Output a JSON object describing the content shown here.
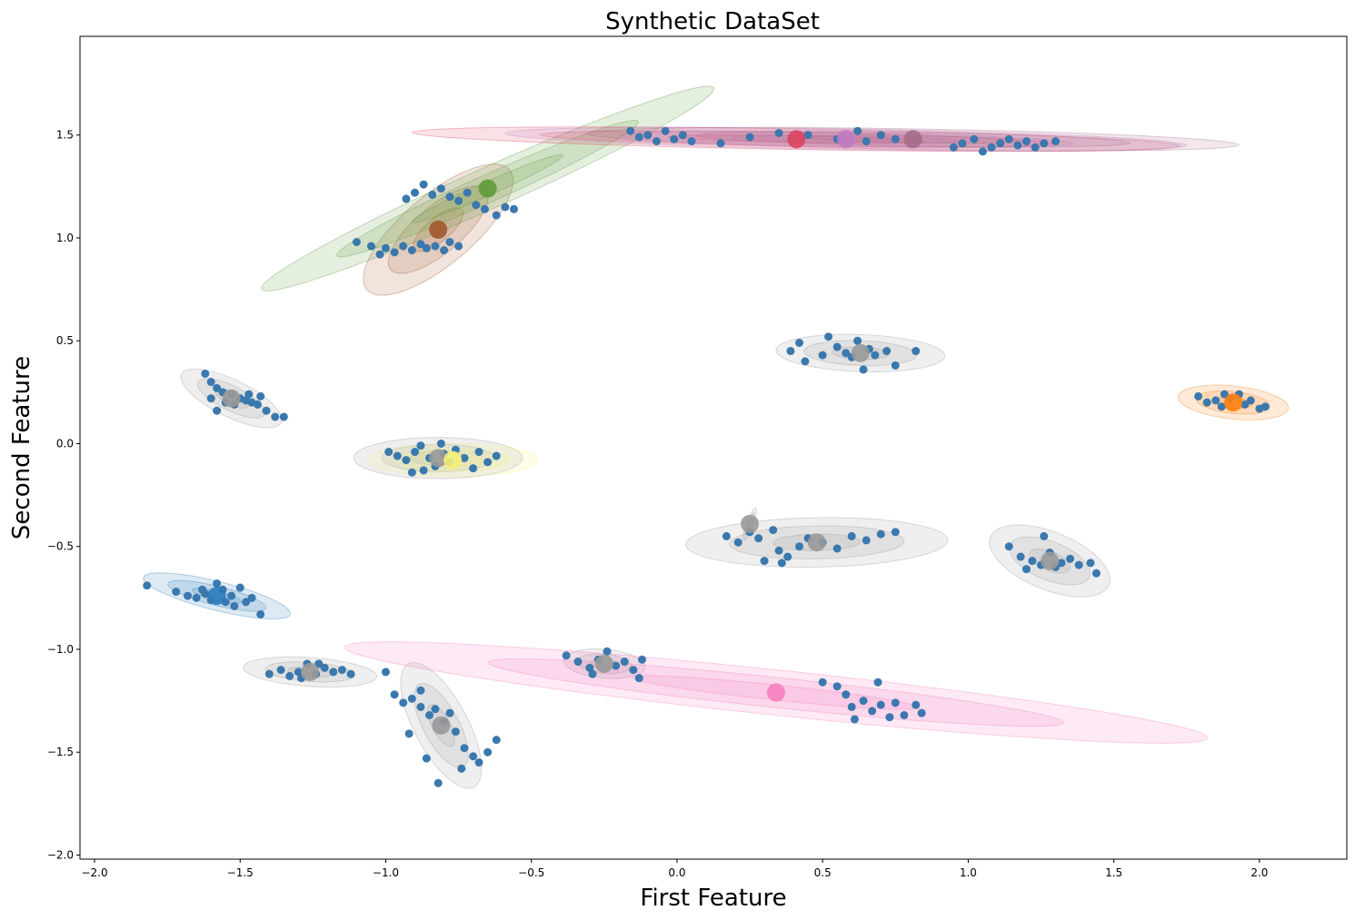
{
  "chart_data": {
    "type": "scatter",
    "title": "Synthetic DataSet",
    "xlabel": "First Feature",
    "ylabel": "Second Feature",
    "xlim": [
      -2.05,
      2.3
    ],
    "ylim": [
      -2.02,
      1.98
    ],
    "xticks": [
      -2.0,
      -1.5,
      -1.0,
      -0.5,
      0.0,
      0.5,
      1.0,
      1.5,
      2.0
    ],
    "xtick_labels": [
      "−2.0",
      "−1.5",
      "−1.0",
      "−0.5",
      "0.0",
      "0.5",
      "1.0",
      "1.5",
      "2.0"
    ],
    "yticks": [
      -2.0,
      -1.5,
      -1.0,
      -0.5,
      0.0,
      0.5,
      1.0,
      1.5
    ],
    "ytick_labels": [
      "−2.0",
      "−1.5",
      "−1.0",
      "−0.5",
      "0.0",
      "0.5",
      "1.0",
      "1.5"
    ],
    "grid": false,
    "point_color": "#3a78ad",
    "ellipse_shading": [
      0.5,
      1.0,
      1.5
    ],
    "clusters": [
      {
        "center": [
          -1.53,
          0.22
        ],
        "color": "#999999",
        "rx": 0.19,
        "ry": 0.09,
        "angle": -26,
        "points": [
          [
            -1.62,
            0.34
          ],
          [
            -1.6,
            0.3
          ],
          [
            -1.58,
            0.27
          ],
          [
            -1.56,
            0.25
          ],
          [
            -1.53,
            0.24
          ],
          [
            -1.5,
            0.22
          ],
          [
            -1.48,
            0.21
          ],
          [
            -1.46,
            0.2
          ],
          [
            -1.44,
            0.19
          ],
          [
            -1.41,
            0.16
          ],
          [
            -1.38,
            0.13
          ],
          [
            -1.35,
            0.13
          ],
          [
            -1.58,
            0.16
          ],
          [
            -1.6,
            0.22
          ],
          [
            -1.55,
            0.2
          ],
          [
            -1.47,
            0.24
          ],
          [
            -1.43,
            0.23
          ],
          [
            -1.52,
            0.19
          ]
        ]
      },
      {
        "center": [
          -0.82,
          -0.07
        ],
        "color": "#999999",
        "rx": 0.29,
        "ry": 0.1,
        "angle": 0,
        "points": [
          [
            -0.99,
            -0.04
          ],
          [
            -0.96,
            -0.06
          ],
          [
            -0.93,
            -0.08
          ],
          [
            -0.9,
            -0.04
          ],
          [
            -0.88,
            -0.01
          ],
          [
            -0.85,
            -0.07
          ],
          [
            -0.83,
            -0.11
          ],
          [
            -0.8,
            -0.05
          ],
          [
            -0.78,
            -0.09
          ],
          [
            -0.76,
            -0.03
          ],
          [
            -0.73,
            -0.07
          ],
          [
            -0.7,
            -0.12
          ],
          [
            -0.68,
            -0.04
          ],
          [
            -0.65,
            -0.09
          ],
          [
            -0.62,
            -0.06
          ],
          [
            -0.91,
            -0.14
          ],
          [
            -0.87,
            -0.13
          ],
          [
            -0.81,
            0.0
          ]
        ]
      },
      {
        "center": [
          -0.77,
          -0.08
        ],
        "color": "#f5f07a",
        "rx": 0.29,
        "ry": 0.08,
        "angle": 0,
        "points": []
      },
      {
        "center": [
          -1.58,
          -0.74
        ],
        "color": "#2b7bba",
        "rx": 0.26,
        "ry": 0.07,
        "angle": -14,
        "points": [
          [
            -1.82,
            -0.69
          ],
          [
            -1.72,
            -0.72
          ],
          [
            -1.68,
            -0.74
          ],
          [
            -1.65,
            -0.75
          ],
          [
            -1.62,
            -0.73
          ],
          [
            -1.6,
            -0.76
          ],
          [
            -1.58,
            -0.68
          ],
          [
            -1.56,
            -0.71
          ],
          [
            -1.53,
            -0.74
          ],
          [
            -1.5,
            -0.7
          ],
          [
            -1.48,
            -0.77
          ],
          [
            -1.46,
            -0.75
          ],
          [
            -1.43,
            -0.83
          ],
          [
            -1.63,
            -0.71
          ],
          [
            -1.55,
            -0.77
          ],
          [
            -1.52,
            -0.79
          ]
        ]
      },
      {
        "center": [
          -1.26,
          -1.11
        ],
        "color": "#999999",
        "rx": 0.23,
        "ry": 0.07,
        "angle": -4,
        "points": [
          [
            -1.4,
            -1.12
          ],
          [
            -1.36,
            -1.1
          ],
          [
            -1.33,
            -1.13
          ],
          [
            -1.3,
            -1.11
          ],
          [
            -1.27,
            -1.07
          ],
          [
            -1.24,
            -1.12
          ],
          [
            -1.21,
            -1.09
          ],
          [
            -1.18,
            -1.11
          ],
          [
            -1.15,
            -1.1
          ],
          [
            -1.12,
            -1.12
          ],
          [
            -1.29,
            -1.14
          ],
          [
            -1.23,
            -1.07
          ]
        ]
      },
      {
        "center": [
          -0.81,
          -1.37
        ],
        "color": "#999999",
        "rx": 0.24,
        "ry": 0.13,
        "angle": -62,
        "points": [
          [
            -1.0,
            -1.11
          ],
          [
            -0.97,
            -1.22
          ],
          [
            -0.94,
            -1.26
          ],
          [
            -0.91,
            -1.24
          ],
          [
            -0.88,
            -1.28
          ],
          [
            -0.85,
            -1.32
          ],
          [
            -0.83,
            -1.29
          ],
          [
            -0.8,
            -1.35
          ],
          [
            -0.78,
            -1.31
          ],
          [
            -0.76,
            -1.4
          ],
          [
            -0.73,
            -1.48
          ],
          [
            -0.7,
            -1.52
          ],
          [
            -0.68,
            -1.55
          ],
          [
            -0.65,
            -1.5
          ],
          [
            -0.62,
            -1.44
          ],
          [
            -0.86,
            -1.53
          ],
          [
            -0.82,
            -1.65
          ],
          [
            -0.74,
            -1.58
          ],
          [
            -0.92,
            -1.41
          ],
          [
            -0.88,
            -1.2
          ]
        ]
      },
      {
        "center": [
          -0.82,
          1.04
        ],
        "color": "#a0582a",
        "rx": 0.32,
        "ry": 0.17,
        "angle": 40,
        "points": [
          [
            -1.1,
            0.98
          ],
          [
            -1.05,
            0.96
          ],
          [
            -1.02,
            0.92
          ],
          [
            -1.0,
            0.95
          ],
          [
            -0.97,
            0.93
          ],
          [
            -0.94,
            0.96
          ],
          [
            -0.91,
            0.94
          ],
          [
            -0.88,
            0.97
          ],
          [
            -0.86,
            0.95
          ],
          [
            -0.83,
            0.96
          ],
          [
            -0.8,
            0.94
          ],
          [
            -0.78,
            0.98
          ],
          [
            -0.75,
            0.96
          ]
        ]
      },
      {
        "center": [
          -0.65,
          1.24
        ],
        "color": "#5f9a3b",
        "rx": 0.85,
        "ry": 0.1,
        "angle": 24,
        "points": [
          [
            -0.93,
            1.19
          ],
          [
            -0.9,
            1.22
          ],
          [
            -0.87,
            1.26
          ],
          [
            -0.84,
            1.21
          ],
          [
            -0.81,
            1.24
          ],
          [
            -0.78,
            1.2
          ],
          [
            -0.75,
            1.18
          ],
          [
            -0.72,
            1.22
          ],
          [
            -0.69,
            1.16
          ],
          [
            -0.66,
            1.14
          ],
          [
            -0.62,
            1.11
          ],
          [
            -0.59,
            1.15
          ],
          [
            -0.56,
            1.14
          ]
        ]
      },
      {
        "center": [
          0.41,
          1.48
        ],
        "color": "#d94560",
        "rx": 1.32,
        "ry": 0.05,
        "angle": -1,
        "points": [
          [
            -0.16,
            1.52
          ],
          [
            -0.13,
            1.49
          ],
          [
            -0.1,
            1.5
          ],
          [
            -0.07,
            1.47
          ],
          [
            -0.04,
            1.52
          ],
          [
            -0.01,
            1.48
          ],
          [
            0.02,
            1.5
          ],
          [
            0.05,
            1.47
          ],
          [
            0.15,
            1.46
          ],
          [
            0.25,
            1.49
          ],
          [
            0.35,
            1.51
          ],
          [
            0.45,
            1.5
          ],
          [
            0.55,
            1.48
          ],
          [
            0.62,
            1.52
          ],
          [
            0.65,
            1.47
          ],
          [
            0.7,
            1.5
          ],
          [
            0.75,
            1.48
          ]
        ]
      },
      {
        "center": [
          0.58,
          1.48
        ],
        "color": "#c07ac0",
        "rx": 1.17,
        "ry": 0.05,
        "angle": -1,
        "points": []
      },
      {
        "center": [
          0.81,
          1.48
        ],
        "color": "#a56b8a",
        "rx": 1.12,
        "ry": 0.05,
        "angle": -1,
        "points": [
          [
            0.95,
            1.44
          ],
          [
            0.98,
            1.46
          ],
          [
            1.02,
            1.48
          ],
          [
            1.05,
            1.42
          ],
          [
            1.08,
            1.44
          ],
          [
            1.11,
            1.46
          ],
          [
            1.14,
            1.48
          ],
          [
            1.17,
            1.45
          ],
          [
            1.2,
            1.47
          ],
          [
            1.23,
            1.44
          ],
          [
            1.26,
            1.46
          ],
          [
            1.3,
            1.47
          ]
        ]
      },
      {
        "center": [
          0.63,
          0.44
        ],
        "color": "#999999",
        "rx": 0.29,
        "ry": 0.09,
        "angle": -2,
        "points": [
          [
            0.39,
            0.45
          ],
          [
            0.42,
            0.49
          ],
          [
            0.44,
            0.4
          ],
          [
            0.5,
            0.43
          ],
          [
            0.52,
            0.52
          ],
          [
            0.55,
            0.47
          ],
          [
            0.58,
            0.44
          ],
          [
            0.6,
            0.42
          ],
          [
            0.62,
            0.5
          ],
          [
            0.64,
            0.36
          ],
          [
            0.66,
            0.46
          ],
          [
            0.68,
            0.43
          ],
          [
            0.72,
            0.45
          ],
          [
            0.75,
            0.38
          ],
          [
            0.82,
            0.45
          ]
        ]
      },
      {
        "center": [
          1.91,
          0.2
        ],
        "color": "#ff7f0e",
        "rx": 0.19,
        "ry": 0.08,
        "angle": -6,
        "points": [
          [
            1.79,
            0.23
          ],
          [
            1.82,
            0.2
          ],
          [
            1.85,
            0.21
          ],
          [
            1.87,
            0.18
          ],
          [
            1.9,
            0.22
          ],
          [
            1.93,
            0.24
          ],
          [
            1.95,
            0.19
          ],
          [
            1.97,
            0.21
          ],
          [
            2.0,
            0.17
          ],
          [
            2.02,
            0.18
          ],
          [
            1.88,
            0.24
          ]
        ]
      },
      {
        "center": [
          0.48,
          -0.48
        ],
        "color": "#999999",
        "rx": 0.45,
        "ry": 0.12,
        "angle": 1,
        "points": [
          [
            0.17,
            -0.45
          ],
          [
            0.21,
            -0.48
          ],
          [
            0.25,
            -0.43
          ],
          [
            0.28,
            -0.46
          ],
          [
            0.3,
            -0.57
          ],
          [
            0.33,
            -0.42
          ],
          [
            0.35,
            -0.52
          ],
          [
            0.38,
            -0.55
          ],
          [
            0.42,
            -0.5
          ],
          [
            0.45,
            -0.46
          ],
          [
            0.5,
            -0.48
          ],
          [
            0.55,
            -0.51
          ],
          [
            0.6,
            -0.45
          ],
          [
            0.65,
            -0.47
          ],
          [
            0.7,
            -0.44
          ],
          [
            0.75,
            -0.43
          ],
          [
            0.36,
            -0.58
          ]
        ]
      },
      {
        "center": [
          0.25,
          -0.39
        ],
        "color": "#999999",
        "rx": 0.06,
        "ry": 0.015,
        "angle": 70,
        "points": []
      },
      {
        "center": [
          1.28,
          -0.57
        ],
        "color": "#999999",
        "rx": 0.22,
        "ry": 0.14,
        "angle": -22,
        "points": [
          [
            1.14,
            -0.5
          ],
          [
            1.18,
            -0.55
          ],
          [
            1.2,
            -0.61
          ],
          [
            1.22,
            -0.57
          ],
          [
            1.25,
            -0.59
          ],
          [
            1.26,
            -0.45
          ],
          [
            1.28,
            -0.53
          ],
          [
            1.3,
            -0.6
          ],
          [
            1.32,
            -0.58
          ],
          [
            1.35,
            -0.56
          ],
          [
            1.38,
            -0.59
          ],
          [
            1.42,
            -0.58
          ],
          [
            1.44,
            -0.63
          ]
        ]
      },
      {
        "center": [
          -0.25,
          -1.07
        ],
        "color": "#999999",
        "rx": 0.14,
        "ry": 0.07,
        "angle": -5,
        "points": [
          [
            -0.38,
            -1.03
          ],
          [
            -0.34,
            -1.06
          ],
          [
            -0.3,
            -1.09
          ],
          [
            -0.27,
            -1.05
          ],
          [
            -0.24,
            -1.01
          ],
          [
            -0.21,
            -1.08
          ],
          [
            -0.18,
            -1.06
          ],
          [
            -0.15,
            -1.1
          ],
          [
            -0.12,
            -1.05
          ],
          [
            -0.13,
            -1.14
          ],
          [
            -0.29,
            -1.12
          ]
        ]
      },
      {
        "center": [
          0.34,
          -1.21
        ],
        "color": "#f57fbf",
        "rx": 1.49,
        "ry": 0.11,
        "angle": -6,
        "points": [
          [
            0.5,
            -1.16
          ],
          [
            0.55,
            -1.18
          ],
          [
            0.58,
            -1.22
          ],
          [
            0.6,
            -1.28
          ],
          [
            0.64,
            -1.25
          ],
          [
            0.67,
            -1.3
          ],
          [
            0.7,
            -1.27
          ],
          [
            0.73,
            -1.33
          ],
          [
            0.75,
            -1.26
          ],
          [
            0.78,
            -1.32
          ],
          [
            0.82,
            -1.27
          ],
          [
            0.84,
            -1.31
          ],
          [
            0.69,
            -1.16
          ],
          [
            0.61,
            -1.34
          ]
        ]
      }
    ]
  }
}
